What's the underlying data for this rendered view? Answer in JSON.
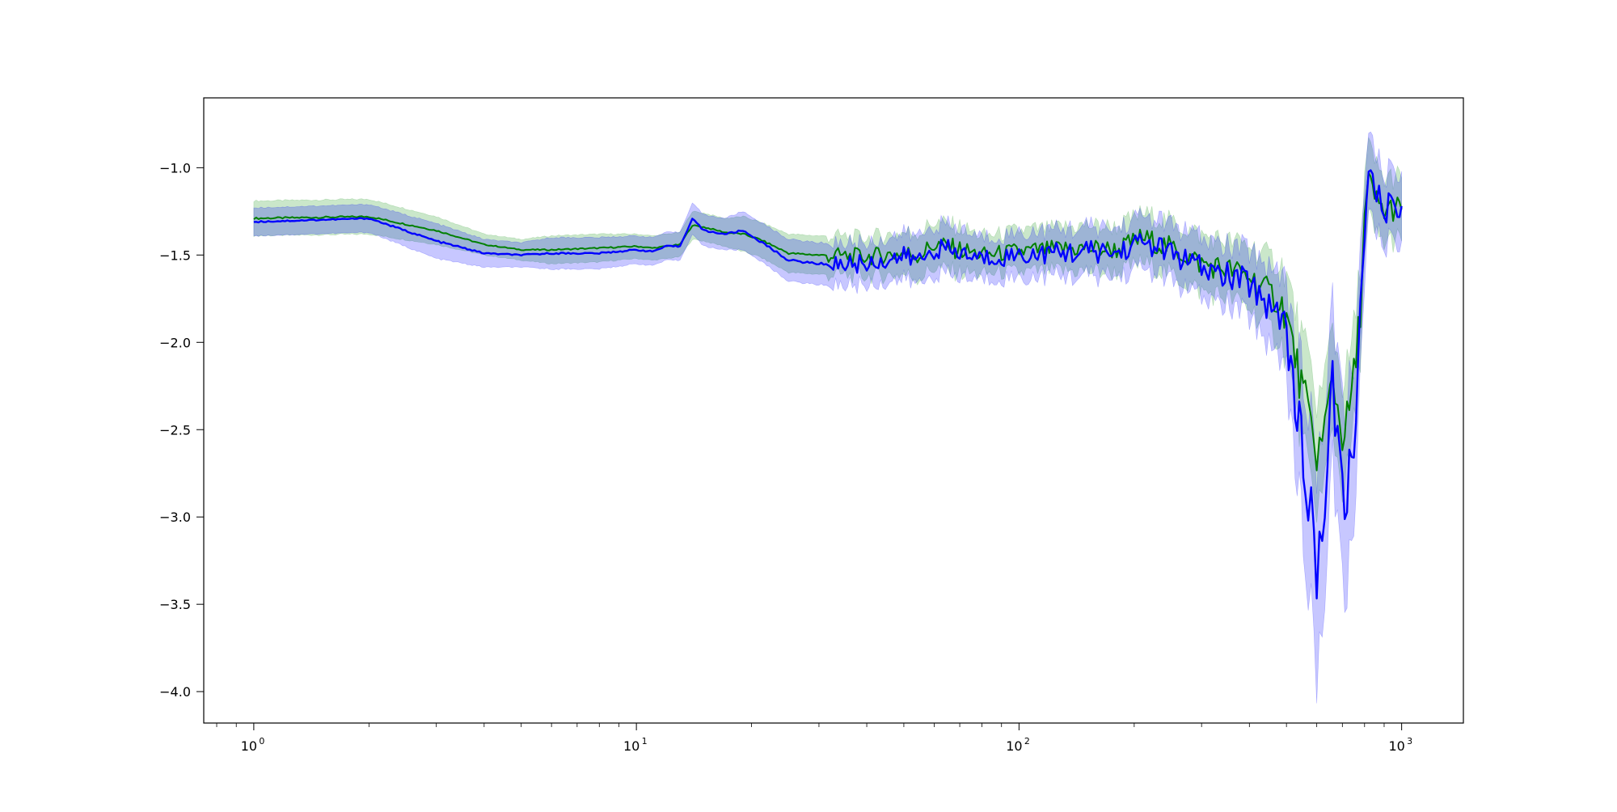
{
  "chart_data": {
    "type": "line",
    "title": "",
    "xlabel": "",
    "ylabel": "",
    "xscale": "log",
    "xlim": [
      0.74,
      1450
    ],
    "ylim": [
      -4.18,
      -0.6
    ],
    "grid": false,
    "x_ticks": [
      {
        "value": 1,
        "base": "10",
        "exp": "0"
      },
      {
        "value": 10,
        "base": "10",
        "exp": "1"
      },
      {
        "value": 100,
        "base": "10",
        "exp": "2"
      },
      {
        "value": 1000,
        "base": "10",
        "exp": "3"
      }
    ],
    "y_ticks": [
      {
        "value": -1.0,
        "label": "−1.0"
      },
      {
        "value": -1.5,
        "label": "−1.5"
      },
      {
        "value": -2.0,
        "label": "−2.0"
      },
      {
        "value": -2.5,
        "label": "−2.5"
      },
      {
        "value": -3.0,
        "label": "−3.0"
      },
      {
        "value": -3.5,
        "label": "−3.5"
      },
      {
        "value": -4.0,
        "label": "−4.0"
      }
    ],
    "series": [
      {
        "color": "#008000",
        "band_color": "#2ca02c",
        "band_opacity": 0.25,
        "x": [
          1,
          2,
          3,
          4,
          5,
          6,
          8,
          10,
          11,
          12,
          13,
          14,
          15,
          17,
          19,
          21,
          25,
          30,
          40,
          50,
          55,
          60,
          70,
          80,
          90,
          100,
          120,
          150,
          180,
          210,
          250,
          300,
          350,
          400,
          450,
          480,
          500,
          520,
          540,
          560,
          580,
          600,
          620,
          640,
          660,
          680,
          700,
          720,
          740,
          760,
          780,
          800,
          820,
          840,
          860,
          900,
          950,
          1000
        ],
        "y": [
          -1.29,
          -1.28,
          -1.36,
          -1.44,
          -1.47,
          -1.47,
          -1.46,
          -1.45,
          -1.46,
          -1.45,
          -1.44,
          -1.33,
          -1.34,
          -1.37,
          -1.38,
          -1.41,
          -1.49,
          -1.5,
          -1.51,
          -1.49,
          -1.5,
          -1.44,
          -1.47,
          -1.5,
          -1.49,
          -1.48,
          -1.47,
          -1.46,
          -1.47,
          -1.4,
          -1.46,
          -1.55,
          -1.58,
          -1.62,
          -1.72,
          -1.76,
          -1.85,
          -2.02,
          -2.2,
          -2.35,
          -2.5,
          -2.62,
          -2.58,
          -2.4,
          -2.18,
          -2.38,
          -2.52,
          -2.46,
          -2.3,
          -2.1,
          -1.8,
          -1.3,
          -1.08,
          -1.15,
          -1.2,
          -1.25,
          -1.23,
          -1.24
        ],
        "spread": [
          0.1,
          0.1,
          0.08,
          0.06,
          0.06,
          0.08,
          0.08,
          0.07,
          0.07,
          0.07,
          0.07,
          0.08,
          0.08,
          0.08,
          0.1,
          0.1,
          0.11,
          0.11,
          0.11,
          0.12,
          0.13,
          0.13,
          0.13,
          0.11,
          0.11,
          0.12,
          0.12,
          0.13,
          0.13,
          0.14,
          0.15,
          0.16,
          0.16,
          0.18,
          0.2,
          0.22,
          0.24,
          0.26,
          0.28,
          0.3,
          0.32,
          0.3,
          0.3,
          0.3,
          0.3,
          0.3,
          0.3,
          0.3,
          0.28,
          0.28,
          0.26,
          0.24,
          0.2,
          0.2,
          0.2,
          0.18,
          0.18,
          0.18
        ]
      },
      {
        "color": "#0000ff",
        "band_color": "#0000ff",
        "band_opacity": 0.22,
        "x": [
          1,
          2,
          3,
          4,
          5,
          6,
          8,
          10,
          11,
          12,
          13,
          14,
          15,
          17,
          19,
          21,
          25,
          30,
          40,
          50,
          55,
          60,
          70,
          80,
          90,
          100,
          120,
          150,
          180,
          210,
          250,
          300,
          350,
          400,
          450,
          480,
          500,
          520,
          540,
          560,
          580,
          600,
          620,
          640,
          660,
          680,
          700,
          720,
          740,
          760,
          780,
          800,
          820,
          840,
          860,
          900,
          950,
          1000
        ],
        "y": [
          -1.31,
          -1.29,
          -1.42,
          -1.49,
          -1.5,
          -1.49,
          -1.49,
          -1.47,
          -1.48,
          -1.45,
          -1.45,
          -1.29,
          -1.36,
          -1.38,
          -1.36,
          -1.42,
          -1.53,
          -1.55,
          -1.55,
          -1.51,
          -1.53,
          -1.46,
          -1.49,
          -1.52,
          -1.51,
          -1.5,
          -1.49,
          -1.48,
          -1.49,
          -1.42,
          -1.49,
          -1.58,
          -1.62,
          -1.66,
          -1.78,
          -1.82,
          -1.95,
          -2.2,
          -2.5,
          -2.8,
          -3.05,
          -3.2,
          -3.1,
          -2.7,
          -2.3,
          -2.55,
          -2.85,
          -2.95,
          -2.65,
          -2.3,
          -1.9,
          -1.35,
          -1.05,
          -1.12,
          -1.18,
          -1.22,
          -1.25,
          -1.22
        ],
        "spread": [
          0.08,
          0.08,
          0.1,
          0.08,
          0.07,
          0.09,
          0.09,
          0.08,
          0.08,
          0.08,
          0.08,
          0.09,
          0.09,
          0.09,
          0.11,
          0.11,
          0.12,
          0.12,
          0.12,
          0.13,
          0.14,
          0.14,
          0.14,
          0.12,
          0.12,
          0.13,
          0.13,
          0.14,
          0.14,
          0.15,
          0.16,
          0.17,
          0.17,
          0.19,
          0.22,
          0.24,
          0.27,
          0.32,
          0.4,
          0.48,
          0.55,
          0.6,
          0.55,
          0.5,
          0.45,
          0.48,
          0.52,
          0.55,
          0.48,
          0.42,
          0.35,
          0.28,
          0.22,
          0.22,
          0.22,
          0.2,
          0.2,
          0.2
        ]
      }
    ]
  }
}
